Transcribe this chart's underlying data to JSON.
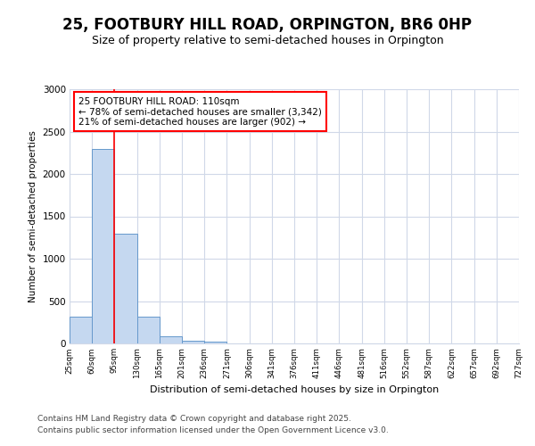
{
  "title_line1": "25, FOOTBURY HILL ROAD, ORPINGTON, BR6 0HP",
  "title_line2": "Size of property relative to semi-detached houses in Orpington",
  "bar_values": [
    320,
    2300,
    1300,
    320,
    80,
    30,
    20,
    0,
    0,
    0,
    0,
    0,
    0,
    0,
    0,
    0,
    0,
    0,
    0,
    0
  ],
  "categories": [
    "25sqm",
    "60sqm",
    "95sqm",
    "130sqm",
    "165sqm",
    "201sqm",
    "236sqm",
    "271sqm",
    "306sqm",
    "341sqm",
    "376sqm",
    "411sqm",
    "446sqm",
    "481sqm",
    "516sqm",
    "552sqm",
    "587sqm",
    "622sqm",
    "657sqm",
    "692sqm",
    "727sqm"
  ],
  "bar_color": "#c5d8f0",
  "bar_edge_color": "#6699cc",
  "ylabel": "Number of semi-detached properties",
  "xlabel": "Distribution of semi-detached houses by size in Orpington",
  "ylim": [
    0,
    3000
  ],
  "annotation_title": "25 FOOTBURY HILL ROAD: 110sqm",
  "annotation_line2": "← 78% of semi-detached houses are smaller (3,342)",
  "annotation_line3": "21% of semi-detached houses are larger (902) →",
  "vline_x": 2.0,
  "footnote1": "Contains HM Land Registry data © Crown copyright and database right 2025.",
  "footnote2": "Contains public sector information licensed under the Open Government Licence v3.0.",
  "background_color": "#ffffff",
  "plot_bg_color": "#ffffff",
  "grid_color": "#d0d8e8",
  "title_fontsize": 12,
  "subtitle_fontsize": 9
}
